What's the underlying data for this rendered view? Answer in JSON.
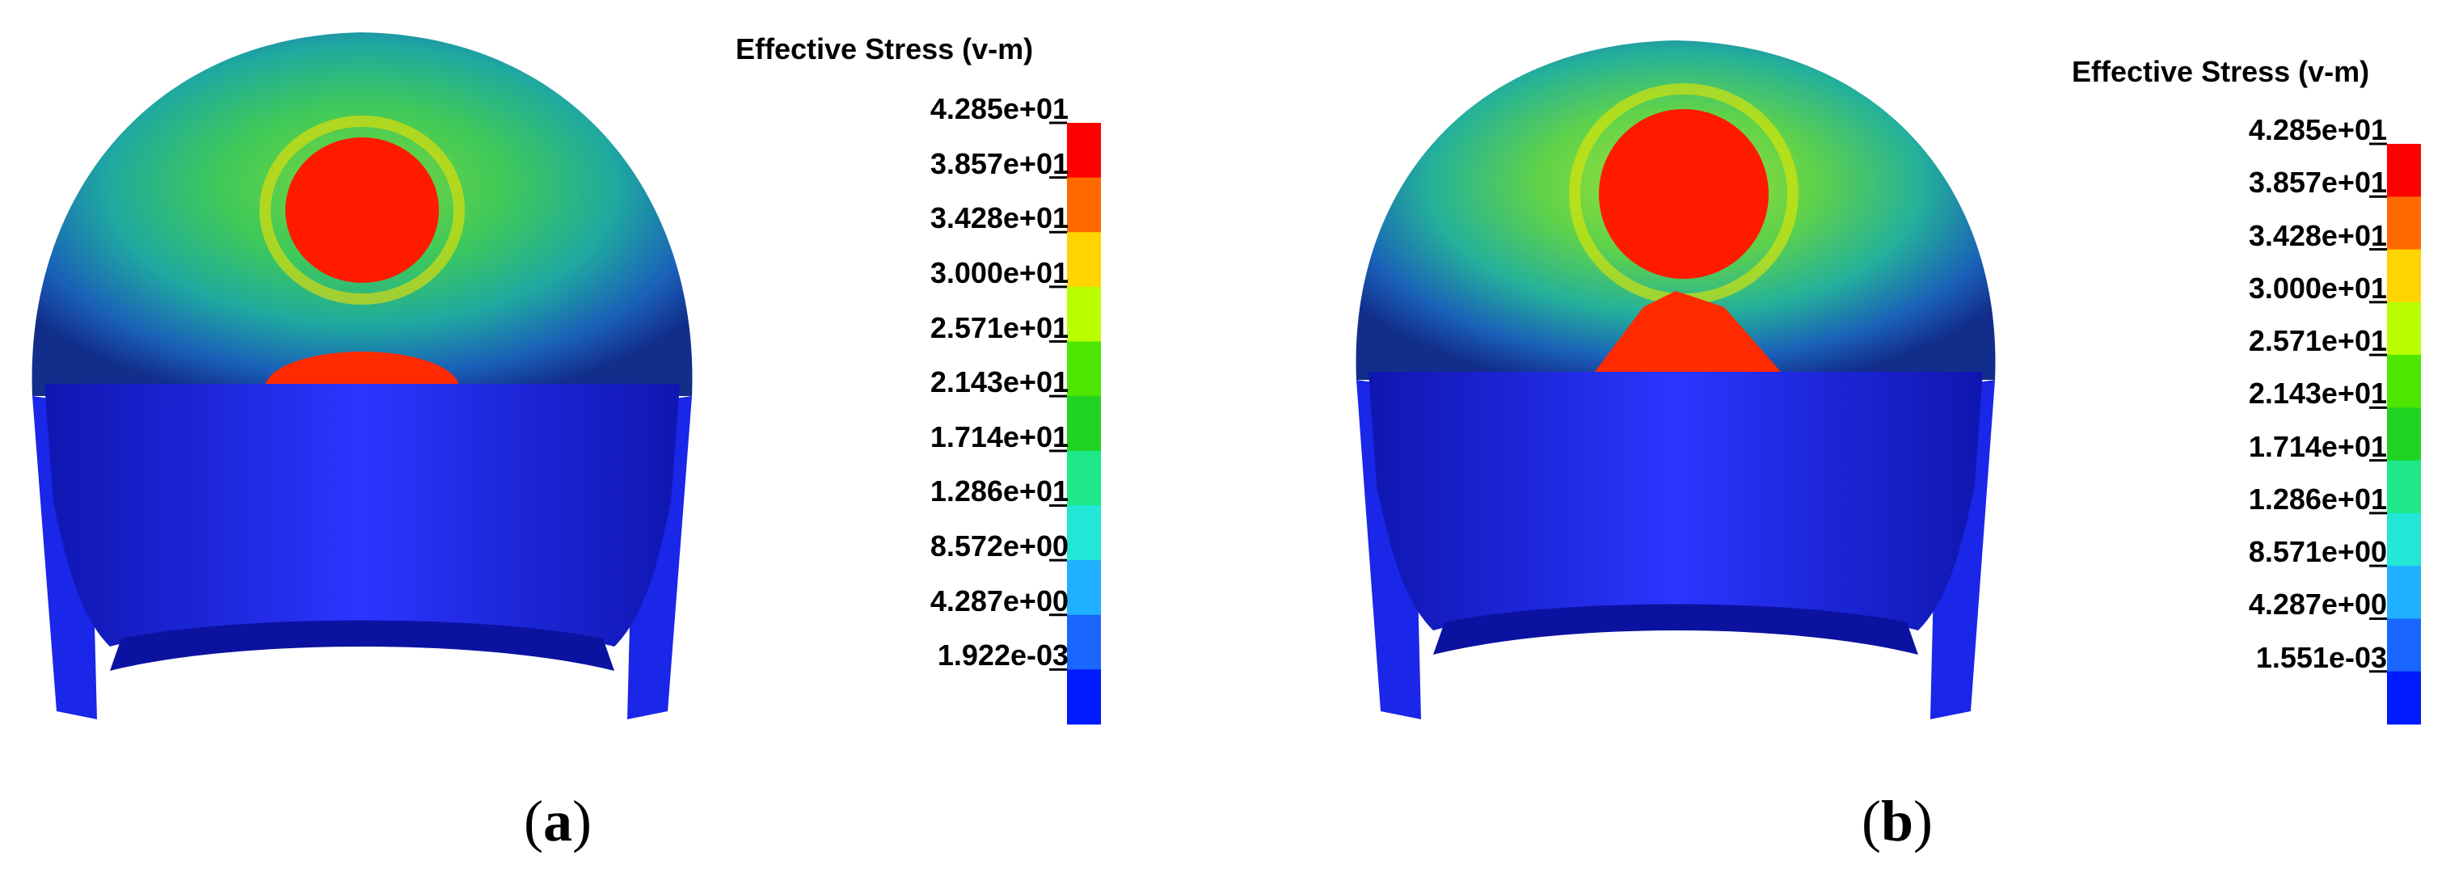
{
  "panels": [
    {
      "id": "a",
      "legend_title": "Effective Stress (v-m)",
      "ticks": [
        "4.285e+01",
        "3.857e+01",
        "3.428e+01",
        "3.000e+01",
        "2.571e+01",
        "2.143e+01",
        "1.714e+01",
        "1.286e+01",
        "8.572e+00",
        "4.287e+00",
        "1.922e-03"
      ],
      "caption_open": "(",
      "caption_letter": "a",
      "caption_close": ")"
    },
    {
      "id": "b",
      "legend_title": "Effective Stress (v-m)",
      "ticks": [
        "4.285e+01",
        "3.857e+01",
        "3.428e+01",
        "3.000e+01",
        "2.571e+01",
        "2.143e+01",
        "1.714e+01",
        "1.286e+01",
        "8.571e+00",
        "4.287e+00",
        "1.551e-03"
      ],
      "caption_open": "(",
      "caption_letter": "b",
      "caption_close": ")"
    }
  ],
  "colorbar_colors": [
    "#ff0000",
    "#ff6a00",
    "#ffd400",
    "#b9ff00",
    "#4ee600",
    "#21d321",
    "#1ee88a",
    "#22e6d6",
    "#1fb1ff",
    "#1a66ff",
    "#0019ff"
  ]
}
